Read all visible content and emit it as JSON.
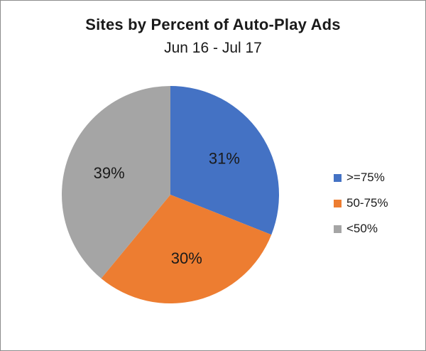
{
  "chart_data": {
    "type": "pie",
    "title": "Sites by Percent of Auto-Play Ads",
    "subtitle": "Jun 16 - Jul 17",
    "categories": [
      ">=75%",
      "50-75%",
      "<50%"
    ],
    "values": [
      31,
      30,
      39
    ],
    "labels": [
      "31%",
      "30%",
      "39%"
    ],
    "colors": [
      "#4472c4",
      "#ed7d31",
      "#a5a5a5"
    ],
    "start_angle": "12 o'clock",
    "direction": "clockwise",
    "legend_position": "right"
  }
}
